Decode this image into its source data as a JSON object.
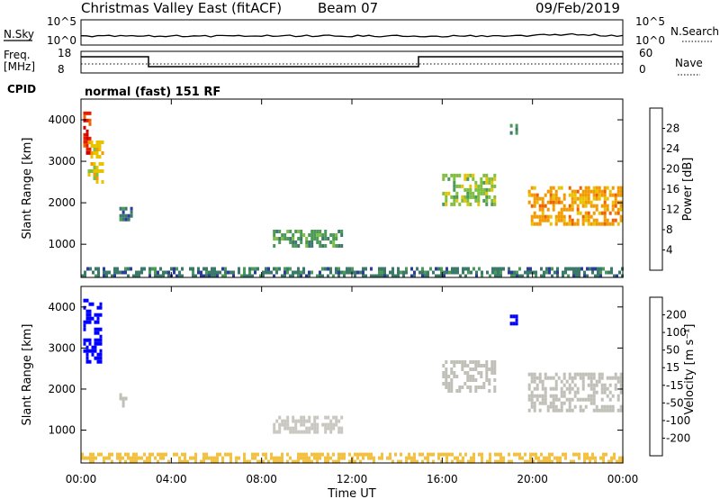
{
  "header": {
    "title": "Christmas Valley East (fitACF)",
    "beam": "Beam 07",
    "date": "09/Feb/2019"
  },
  "top_panels": {
    "nsky_label": "N.Sky",
    "nsky_ticks": [
      "10^5",
      "10^0"
    ],
    "nsearch_label": "N.Search",
    "nsearch_ticks": [
      "10^5",
      "10^0"
    ],
    "freq_label_1": "Freq.",
    "freq_label_2": "[MHz]",
    "freq_ticks": [
      "18",
      "8"
    ],
    "nave_label": "Nave",
    "nave_ticks": [
      "60",
      "0"
    ],
    "cpid_label": "CPID",
    "mode_text": "normal (fast) 151 RF"
  },
  "colors": {
    "power_scale": [
      "#0000ff",
      "#2c3c9c",
      "#3b7a6a",
      "#4a9a58",
      "#7fbf40",
      "#e8c400",
      "#f39a00",
      "#f06000",
      "#e02000",
      "#d00000"
    ],
    "velocity_scale": [
      "#0000ff",
      "#1e40a8",
      "#2c8a50",
      "#70c040",
      "#c8c8c0",
      "#f4c040",
      "#f3a000",
      "#f07000",
      "#e03000",
      "#ff0000"
    ],
    "ground_scatter": "#c0c0b8"
  },
  "chart_data": [
    {
      "type": "heatmap",
      "name": "power",
      "ylabel": "Slant Range [km]",
      "xlabel": "Time UT",
      "xlim": [
        "00:00",
        "00:00"
      ],
      "ylim": [
        200,
        4500
      ],
      "yticks": [
        "1000",
        "2000",
        "3000",
        "4000"
      ],
      "xticks": [
        "00:00",
        "04:00",
        "08:00",
        "12:00",
        "16:00",
        "20:00",
        "00:00"
      ],
      "colorbar_label": "Power [dB]",
      "colorbar_ticks": [
        "28",
        "24",
        "20",
        "16",
        "12",
        "8",
        "4"
      ],
      "colorbar_range": [
        0,
        32
      ],
      "regions": [
        {
          "t": [
            0.1,
            0.4
          ],
          "r": [
            3200,
            4200
          ],
          "level": 26
        },
        {
          "t": [
            0.3,
            0.9
          ],
          "r": [
            2500,
            3500
          ],
          "level": 18
        },
        {
          "t": [
            1.7,
            2.2
          ],
          "r": [
            1600,
            1900
          ],
          "level": 8
        },
        {
          "t": [
            8.5,
            11.5
          ],
          "r": [
            950,
            1350
          ],
          "level": 12
        },
        {
          "t": [
            16.0,
            18.3
          ],
          "r": [
            1950,
            2700
          ],
          "level": 14
        },
        {
          "t": [
            19.0,
            19.3
          ],
          "r": [
            3700,
            3900
          ],
          "level": 10
        },
        {
          "t": [
            19.8,
            23.9
          ],
          "r": [
            1500,
            2400
          ],
          "level": 20
        },
        {
          "t": [
            0.0,
            24.0
          ],
          "r": [
            250,
            450
          ],
          "level": 8
        }
      ]
    },
    {
      "type": "heatmap",
      "name": "velocity",
      "ylabel": "Slant Range [km]",
      "xlabel": "Time UT",
      "xlim": [
        "00:00",
        "00:00"
      ],
      "ylim": [
        200,
        4500
      ],
      "yticks": [
        "1000",
        "2000",
        "3000",
        "4000"
      ],
      "xticks": [
        "00:00",
        "04:00",
        "08:00",
        "12:00",
        "16:00",
        "20:00",
        "00:00"
      ],
      "colorbar_label": "Velocity [m s⁻¹]",
      "colorbar_ticks": [
        "200",
        "100",
        "50",
        "15",
        "-15",
        "-50",
        "-100",
        "-200"
      ],
      "colorbar_range": [
        -250,
        250
      ],
      "regions": [
        {
          "t": [
            0.1,
            0.9
          ],
          "r": [
            2700,
            4200
          ],
          "v": 220
        },
        {
          "t": [
            1.7,
            2.0
          ],
          "r": [
            1600,
            1900
          ],
          "v": 0
        },
        {
          "t": [
            8.5,
            11.5
          ],
          "r": [
            950,
            1350
          ],
          "v": 40
        },
        {
          "t": [
            16.0,
            18.3
          ],
          "r": [
            1950,
            2700
          ],
          "v": 0
        },
        {
          "t": [
            19.0,
            19.3
          ],
          "r": [
            3600,
            3900
          ],
          "v": 220
        },
        {
          "t": [
            19.8,
            23.9
          ],
          "r": [
            1500,
            2400
          ],
          "v": 0
        },
        {
          "t": [
            0.0,
            24.0
          ],
          "r": [
            250,
            450
          ],
          "v": -40
        }
      ]
    }
  ]
}
